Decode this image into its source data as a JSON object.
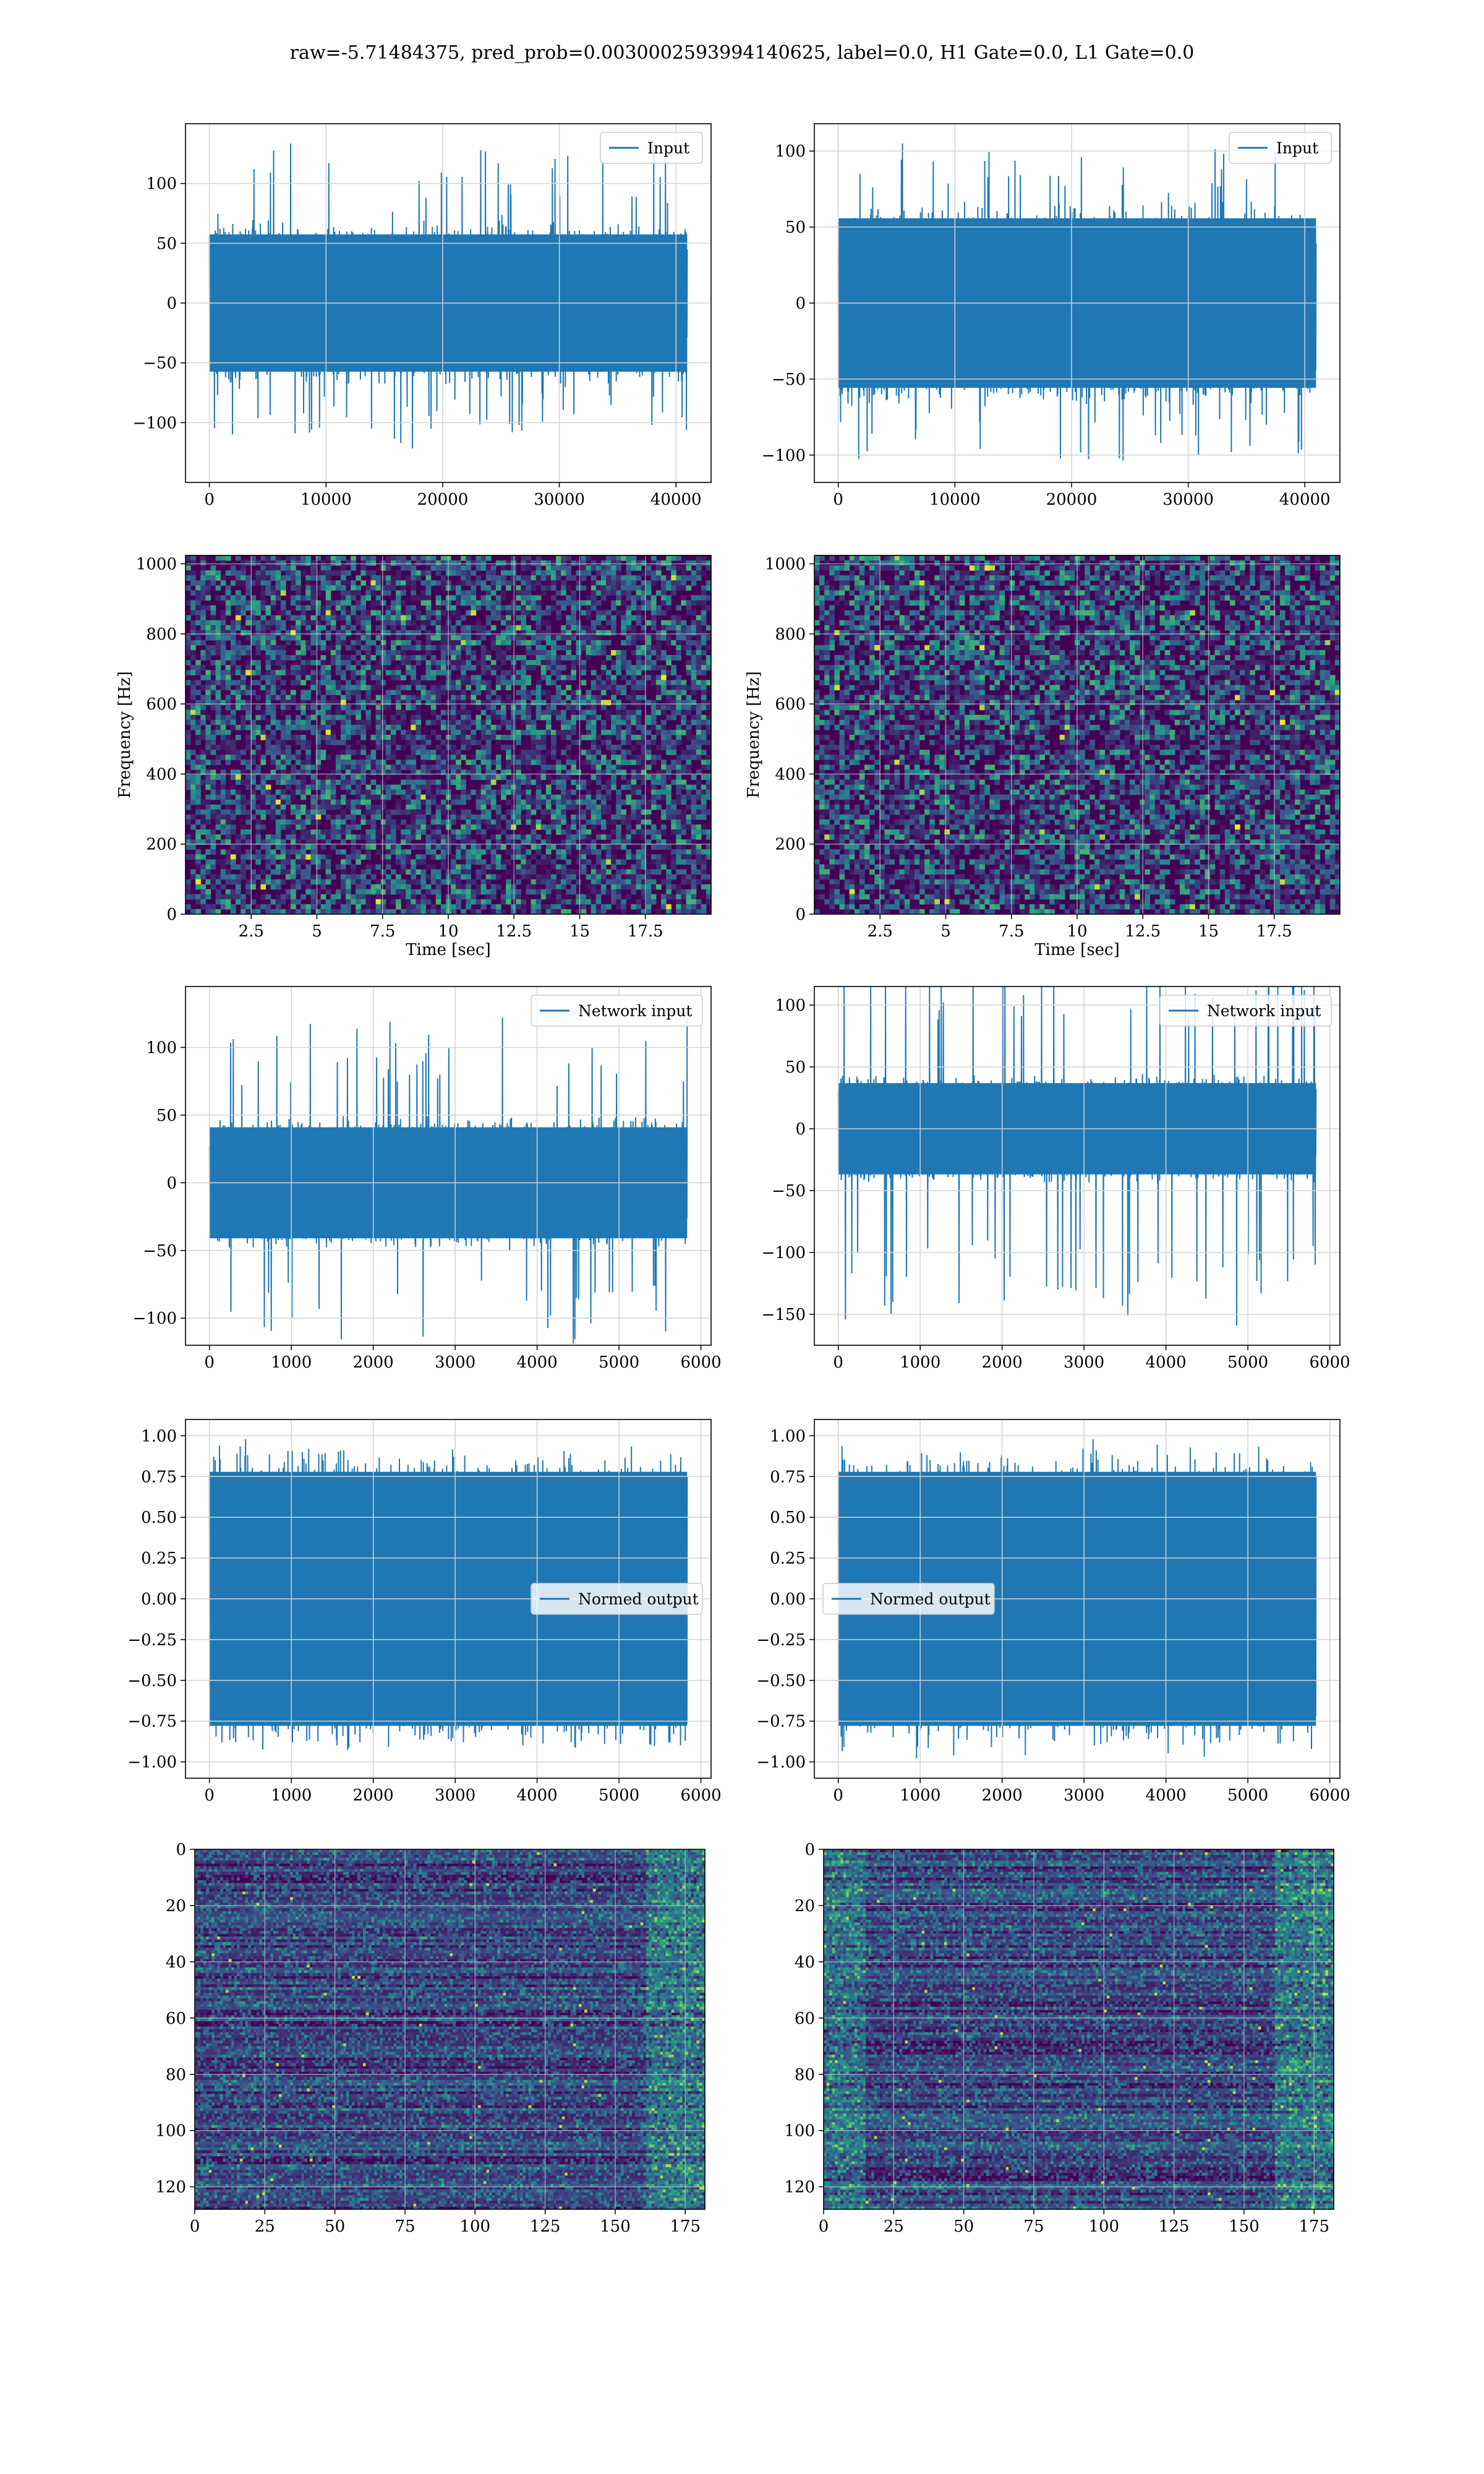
{
  "figure_title": "raw=-5.71484375, pred_prob=0.0030002593994140625, label=0.0, H1 Gate=0.0, L1 Gate=0.0",
  "colors": {
    "line": "#1f77b4",
    "grid": "#d3d3d3",
    "viridis_low": "#440154",
    "viridis_mid": "#21918c",
    "viridis_high": "#fde725"
  },
  "chart_data": [
    {
      "id": "input-left",
      "type": "line",
      "render": "noise",
      "series": [
        {
          "name": "Input",
          "amplitude_typical": 70,
          "amplitude_peak": 135,
          "n_points": 40960
        }
      ],
      "xlim": [
        -2048,
        43008
      ],
      "ylim": [
        -150,
        150
      ],
      "xticks": [
        0,
        10000,
        20000,
        30000,
        40000
      ],
      "yticks": [
        -100,
        -50,
        0,
        50,
        100
      ],
      "legend": "top-right",
      "grid": true
    },
    {
      "id": "input-right",
      "type": "line",
      "render": "noise",
      "series": [
        {
          "name": "Input",
          "amplitude_typical": 68,
          "amplitude_peak": 113,
          "n_points": 40960
        }
      ],
      "xlim": [
        -2048,
        43008
      ],
      "ylim": [
        -118,
        118
      ],
      "xticks": [
        0,
        10000,
        20000,
        30000,
        40000
      ],
      "yticks": [
        -100,
        -50,
        0,
        50,
        100
      ],
      "legend": "top-right",
      "grid": true
    },
    {
      "id": "spectrogram-left",
      "type": "heatmap",
      "render": "speckle",
      "xlabel": "Time [sec]",
      "ylabel": "Frequency [Hz]",
      "xlim": [
        0,
        20
      ],
      "ylim": [
        0,
        1024
      ],
      "xticks": [
        2.5,
        5.0,
        7.5,
        10.0,
        12.5,
        15.0,
        17.5
      ],
      "yticks": [
        0,
        200,
        400,
        600,
        800,
        1000
      ],
      "colormap": "viridis",
      "grid": true
    },
    {
      "id": "spectrogram-right",
      "type": "heatmap",
      "render": "speckle",
      "xlabel": "Time [sec]",
      "ylabel": "Frequency [Hz]",
      "xlim": [
        0,
        20
      ],
      "ylim": [
        0,
        1024
      ],
      "xticks": [
        2.5,
        5.0,
        7.5,
        10.0,
        12.5,
        15.0,
        17.5
      ],
      "yticks": [
        0,
        200,
        400,
        600,
        800,
        1000
      ],
      "colormap": "viridis",
      "grid": true
    },
    {
      "id": "network-left",
      "type": "line",
      "render": "noise",
      "series": [
        {
          "name": "Network input",
          "amplitude_typical": 50,
          "amplitude_peak": 130,
          "n_points": 5832
        }
      ],
      "xlim": [
        -292,
        6124
      ],
      "ylim": [
        -120,
        145
      ],
      "xticks": [
        0,
        1000,
        2000,
        3000,
        4000,
        5000,
        6000
      ],
      "yticks": [
        -100,
        -50,
        0,
        50,
        100
      ],
      "legend": "top-right",
      "grid": true
    },
    {
      "id": "network-right",
      "type": "line",
      "render": "noise",
      "series": [
        {
          "name": "Network input",
          "amplitude_typical": 45,
          "amplitude_peak": 160,
          "n_points": 5832
        }
      ],
      "xlim": [
        -292,
        6124
      ],
      "ylim": [
        -175,
        115
      ],
      "xticks": [
        0,
        1000,
        2000,
        3000,
        4000,
        5000,
        6000
      ],
      "yticks": [
        -150,
        -100,
        -50,
        0,
        50,
        100
      ],
      "legend": "top-right",
      "grid": true
    },
    {
      "id": "normed-left",
      "type": "line",
      "render": "noise",
      "series": [
        {
          "name": "Normed output",
          "amplitude_typical": 0.95,
          "amplitude_peak": 1.0,
          "n_points": 5832
        }
      ],
      "xlim": [
        -292,
        6124
      ],
      "ylim": [
        -1.1,
        1.1
      ],
      "xticks": [
        0,
        1000,
        2000,
        3000,
        4000,
        5000,
        6000
      ],
      "yticks": [
        -1.0,
        -0.75,
        -0.5,
        -0.25,
        0.0,
        0.25,
        0.5,
        0.75,
        1.0
      ],
      "yticks_text": [
        "−1.00",
        "−0.75",
        "−0.50",
        "−0.25",
        "0.00",
        "0.25",
        "0.50",
        "0.75",
        "1.00"
      ],
      "legend": "center-right",
      "grid": true
    },
    {
      "id": "normed-right",
      "type": "line",
      "render": "noise",
      "series": [
        {
          "name": "Normed output",
          "amplitude_typical": 0.95,
          "amplitude_peak": 1.0,
          "n_points": 5832
        }
      ],
      "xlim": [
        -292,
        6124
      ],
      "ylim": [
        -1.1,
        1.1
      ],
      "xticks": [
        0,
        1000,
        2000,
        3000,
        4000,
        5000,
        6000
      ],
      "yticks": [
        -1.0,
        -0.75,
        -0.5,
        -0.25,
        0.0,
        0.25,
        0.5,
        0.75,
        1.0
      ],
      "yticks_text": [
        "−1.00",
        "−0.75",
        "−0.50",
        "−0.25",
        "0.00",
        "0.25",
        "0.50",
        "0.75",
        "1.00"
      ],
      "legend": "center-left",
      "grid": true
    },
    {
      "id": "features-left",
      "type": "heatmap",
      "render": "rows",
      "xlim": [
        0,
        182
      ],
      "ylim": [
        128,
        0
      ],
      "y_inverted": true,
      "xticks": [
        0,
        25,
        50,
        75,
        100,
        125,
        150,
        175
      ],
      "yticks": [
        0,
        20,
        40,
        60,
        80,
        100,
        120
      ],
      "colormap": "viridis",
      "grid": true
    },
    {
      "id": "features-right",
      "type": "heatmap",
      "render": "rows",
      "xlim": [
        0,
        182
      ],
      "ylim": [
        128,
        0
      ],
      "y_inverted": true,
      "xticks": [
        0,
        25,
        50,
        75,
        100,
        125,
        150,
        175
      ],
      "yticks": [
        0,
        20,
        40,
        60,
        80,
        100,
        120
      ],
      "colormap": "viridis",
      "grid": true
    }
  ]
}
